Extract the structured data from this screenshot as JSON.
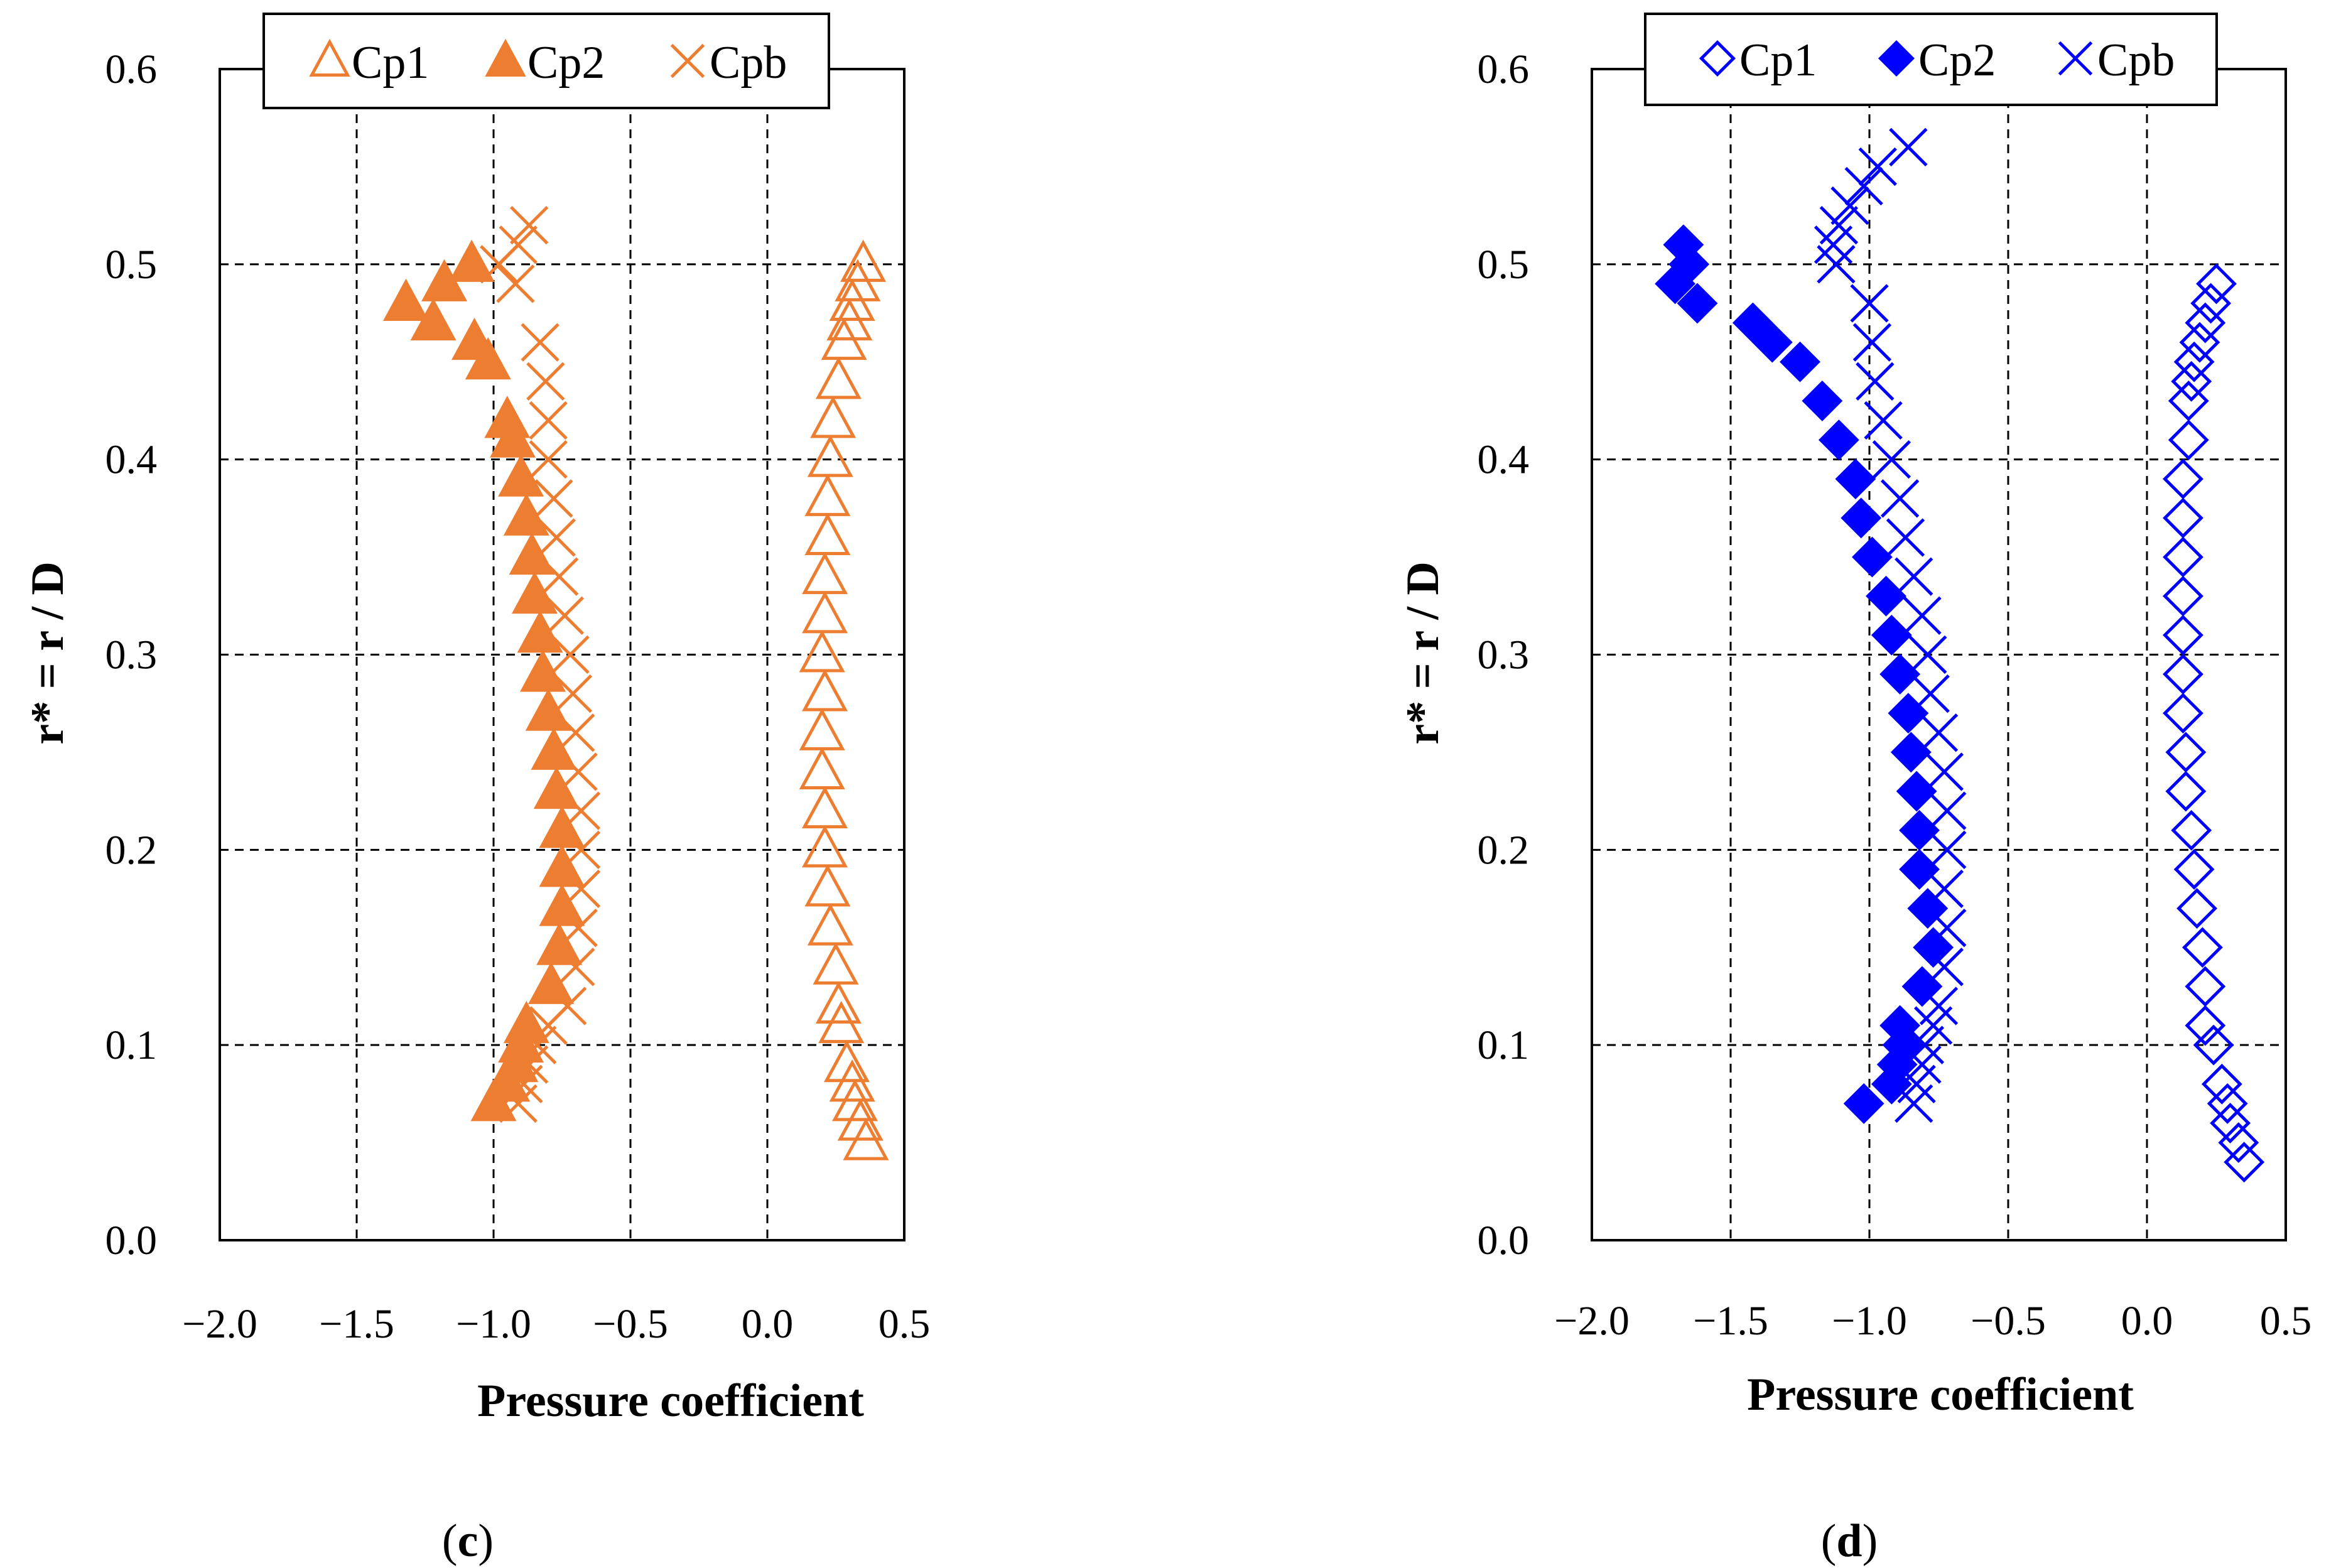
{
  "chart_data": [
    {
      "type": "scatter",
      "panel_label": "c",
      "caption_open": "(",
      "caption_close": ")",
      "xlabel": "Pressure coefficient",
      "ylabel": "r* = r / D",
      "xlim": [
        -2.0,
        0.5
      ],
      "ylim": [
        0.0,
        0.6
      ],
      "x_ticks": [
        "−2.0",
        "−1.5",
        "−1.0",
        "−0.5",
        "0.0",
        "0.5"
      ],
      "y_ticks": [
        "0.0",
        "0.1",
        "0.2",
        "0.3",
        "0.4",
        "0.5",
        "0.6"
      ],
      "grid": "dashed",
      "legend_position": "top",
      "color": "#ED7D31",
      "series": [
        {
          "name": "Cp1",
          "marker": "triangle-open",
          "points": [
            [
              0.35,
              0.5
            ],
            [
              0.33,
              0.49
            ],
            [
              0.31,
              0.48
            ],
            [
              0.3,
              0.47
            ],
            [
              0.28,
              0.46
            ],
            [
              0.26,
              0.44
            ],
            [
              0.24,
              0.42
            ],
            [
              0.23,
              0.4
            ],
            [
              0.22,
              0.38
            ],
            [
              0.22,
              0.36
            ],
            [
              0.21,
              0.34
            ],
            [
              0.21,
              0.32
            ],
            [
              0.2,
              0.3
            ],
            [
              0.21,
              0.28
            ],
            [
              0.2,
              0.26
            ],
            [
              0.2,
              0.24
            ],
            [
              0.21,
              0.22
            ],
            [
              0.21,
              0.2
            ],
            [
              0.22,
              0.18
            ],
            [
              0.23,
              0.16
            ],
            [
              0.25,
              0.14
            ],
            [
              0.26,
              0.12
            ],
            [
              0.27,
              0.11
            ],
            [
              0.29,
              0.09
            ],
            [
              0.31,
              0.08
            ],
            [
              0.32,
              0.07
            ],
            [
              0.34,
              0.06
            ],
            [
              0.36,
              0.05
            ]
          ]
        },
        {
          "name": "Cp2",
          "marker": "triangle-filled",
          "points": [
            [
              -1.08,
              0.5
            ],
            [
              -1.18,
              0.49
            ],
            [
              -1.32,
              0.48
            ],
            [
              -1.22,
              0.47
            ],
            [
              -1.07,
              0.46
            ],
            [
              -1.02,
              0.45
            ],
            [
              -0.95,
              0.42
            ],
            [
              -0.93,
              0.41
            ],
            [
              -0.9,
              0.39
            ],
            [
              -0.88,
              0.37
            ],
            [
              -0.86,
              0.35
            ],
            [
              -0.85,
              0.33
            ],
            [
              -0.83,
              0.31
            ],
            [
              -0.82,
              0.29
            ],
            [
              -0.8,
              0.27
            ],
            [
              -0.78,
              0.25
            ],
            [
              -0.77,
              0.23
            ],
            [
              -0.75,
              0.21
            ],
            [
              -0.75,
              0.19
            ],
            [
              -0.75,
              0.17
            ],
            [
              -0.76,
              0.15
            ],
            [
              -0.79,
              0.13
            ],
            [
              -0.88,
              0.11
            ],
            [
              -0.9,
              0.1
            ],
            [
              -0.92,
              0.09
            ],
            [
              -0.95,
              0.08
            ],
            [
              -1.0,
              0.07
            ]
          ]
        },
        {
          "name": "Cpb",
          "marker": "x",
          "points": [
            [
              -0.87,
              0.52
            ],
            [
              -0.91,
              0.51
            ],
            [
              -0.98,
              0.5
            ],
            [
              -0.92,
              0.49
            ],
            [
              -0.83,
              0.46
            ],
            [
              -0.81,
              0.44
            ],
            [
              -0.8,
              0.42
            ],
            [
              -0.8,
              0.4
            ],
            [
              -0.78,
              0.38
            ],
            [
              -0.77,
              0.36
            ],
            [
              -0.76,
              0.34
            ],
            [
              -0.74,
              0.32
            ],
            [
              -0.72,
              0.3
            ],
            [
              -0.71,
              0.28
            ],
            [
              -0.7,
              0.26
            ],
            [
              -0.69,
              0.24
            ],
            [
              -0.68,
              0.22
            ],
            [
              -0.68,
              0.2
            ],
            [
              -0.68,
              0.18
            ],
            [
              -0.69,
              0.16
            ],
            [
              -0.7,
              0.14
            ],
            [
              -0.73,
              0.12
            ],
            [
              -0.8,
              0.11
            ],
            [
              -0.84,
              0.1
            ],
            [
              -0.87,
              0.09
            ],
            [
              -0.89,
              0.08
            ],
            [
              -0.91,
              0.07
            ]
          ]
        }
      ]
    },
    {
      "type": "scatter",
      "panel_label": "d",
      "caption_open": "(",
      "caption_close": ")",
      "xlabel": "Pressure coefficient",
      "ylabel": "r* = r / D",
      "xlim": [
        -2.0,
        0.5
      ],
      "ylim": [
        0.0,
        0.6
      ],
      "x_ticks": [
        "−2.0",
        "−1.5",
        "−1.0",
        "−0.5",
        "0.0",
        "0.5"
      ],
      "y_ticks": [
        "0.0",
        "0.1",
        "0.2",
        "0.3",
        "0.4",
        "0.5",
        "0.6"
      ],
      "grid": "dashed",
      "legend_position": "top",
      "color": "#0000FF",
      "series": [
        {
          "name": "Cp1",
          "marker": "diamond-open",
          "points": [
            [
              0.25,
              0.49
            ],
            [
              0.23,
              0.48
            ],
            [
              0.21,
              0.47
            ],
            [
              0.19,
              0.46
            ],
            [
              0.17,
              0.45
            ],
            [
              0.16,
              0.44
            ],
            [
              0.15,
              0.43
            ],
            [
              0.15,
              0.41
            ],
            [
              0.13,
              0.39
            ],
            [
              0.13,
              0.37
            ],
            [
              0.13,
              0.35
            ],
            [
              0.13,
              0.33
            ],
            [
              0.13,
              0.31
            ],
            [
              0.13,
              0.29
            ],
            [
              0.13,
              0.27
            ],
            [
              0.14,
              0.25
            ],
            [
              0.14,
              0.23
            ],
            [
              0.16,
              0.21
            ],
            [
              0.17,
              0.19
            ],
            [
              0.18,
              0.17
            ],
            [
              0.2,
              0.15
            ],
            [
              0.21,
              0.13
            ],
            [
              0.21,
              0.11
            ],
            [
              0.24,
              0.1
            ],
            [
              0.27,
              0.08
            ],
            [
              0.29,
              0.07
            ],
            [
              0.3,
              0.06
            ],
            [
              0.33,
              0.05
            ],
            [
              0.35,
              0.04
            ]
          ]
        },
        {
          "name": "Cp2",
          "marker": "diamond-filled",
          "points": [
            [
              -1.67,
              0.51
            ],
            [
              -1.65,
              0.5
            ],
            [
              -1.7,
              0.49
            ],
            [
              -1.62,
              0.48
            ],
            [
              -1.42,
              0.47
            ],
            [
              -1.35,
              0.46
            ],
            [
              -1.25,
              0.45
            ],
            [
              -1.17,
              0.43
            ],
            [
              -1.11,
              0.41
            ],
            [
              -1.05,
              0.39
            ],
            [
              -1.03,
              0.37
            ],
            [
              -0.99,
              0.35
            ],
            [
              -0.94,
              0.33
            ],
            [
              -0.92,
              0.31
            ],
            [
              -0.89,
              0.29
            ],
            [
              -0.86,
              0.27
            ],
            [
              -0.85,
              0.25
            ],
            [
              -0.83,
              0.23
            ],
            [
              -0.82,
              0.21
            ],
            [
              -0.82,
              0.19
            ],
            [
              -0.79,
              0.17
            ],
            [
              -0.77,
              0.15
            ],
            [
              -0.81,
              0.13
            ],
            [
              -0.89,
              0.11
            ],
            [
              -0.88,
              0.1
            ],
            [
              -0.9,
              0.09
            ],
            [
              -0.92,
              0.08
            ],
            [
              -1.02,
              0.07
            ]
          ]
        },
        {
          "name": "Cpb",
          "marker": "x",
          "points": [
            [
              -0.86,
              0.56
            ],
            [
              -0.97,
              0.55
            ],
            [
              -1.02,
              0.54
            ],
            [
              -1.07,
              0.53
            ],
            [
              -1.11,
              0.52
            ],
            [
              -1.13,
              0.51
            ],
            [
              -1.12,
              0.5
            ],
            [
              -1.0,
              0.48
            ],
            [
              -0.99,
              0.46
            ],
            [
              -0.98,
              0.44
            ],
            [
              -0.95,
              0.42
            ],
            [
              -0.92,
              0.4
            ],
            [
              -0.89,
              0.38
            ],
            [
              -0.87,
              0.36
            ],
            [
              -0.84,
              0.34
            ],
            [
              -0.81,
              0.32
            ],
            [
              -0.79,
              0.3
            ],
            [
              -0.78,
              0.28
            ],
            [
              -0.75,
              0.26
            ],
            [
              -0.73,
              0.24
            ],
            [
              -0.72,
              0.22
            ],
            [
              -0.72,
              0.2
            ],
            [
              -0.73,
              0.18
            ],
            [
              -0.72,
              0.16
            ],
            [
              -0.73,
              0.14
            ],
            [
              -0.75,
              0.12
            ],
            [
              -0.77,
              0.11
            ],
            [
              -0.8,
              0.1
            ],
            [
              -0.81,
              0.09
            ],
            [
              -0.83,
              0.08
            ],
            [
              -0.84,
              0.07
            ]
          ]
        }
      ]
    }
  ]
}
